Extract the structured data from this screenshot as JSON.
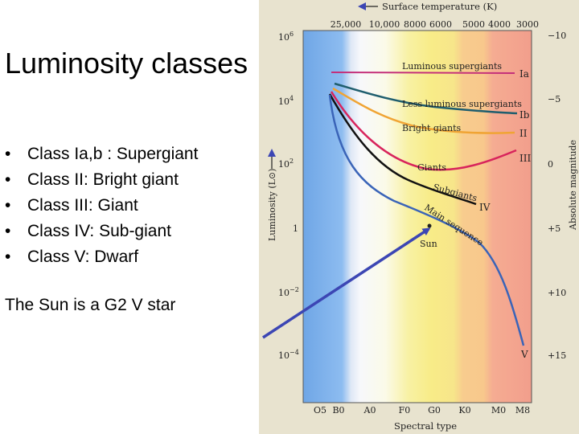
{
  "slide": {
    "title": "Luminosity classes",
    "bullets": [
      "Class Ia,b : Supergiant",
      "Class II: Bright giant",
      "Class III: Giant",
      "Class IV: Sub-giant",
      "Class V: Dwarf"
    ],
    "note": "The Sun is a G2 V star"
  },
  "diagram": {
    "top_axis_title": "Surface temperature (K)",
    "top_ticks": [
      "25,000",
      "10,000",
      "8000",
      "6000",
      "5000",
      "4000",
      "3000"
    ],
    "bottom_axis_title": "Spectral type",
    "bottom_ticks": [
      "O5",
      "B0",
      "A0",
      "F0",
      "G0",
      "K0",
      "M0",
      "M8"
    ],
    "left_axis_title": "Luminosity (L⊙)",
    "right_axis_title": "Absolute magnitude",
    "left_ticks": [
      {
        "base": "10",
        "exp": "6"
      },
      {
        "base": "10",
        "exp": "4"
      },
      {
        "base": "10",
        "exp": "2"
      },
      {
        "base": "1",
        "exp": ""
      },
      {
        "base": "10",
        "exp": "−2"
      },
      {
        "base": "10",
        "exp": "−4"
      }
    ],
    "right_ticks": [
      "−10",
      "−5",
      "0",
      "+5",
      "+10",
      "+15"
    ],
    "curve_labels": [
      "Luminous supergiants",
      "Less luminous supergiants",
      "Bright giants",
      "Giants",
      "Subgiants",
      "Main sequence",
      "Sun"
    ],
    "class_labels": [
      "Ia",
      "Ib",
      "II",
      "III",
      "IV",
      "V"
    ],
    "colors": {
      "blue_band": "#7aaee8",
      "white_band": "#f4f6fa",
      "yellow_band": "#f8ee8c",
      "orange_band": "#f8c890",
      "red_band": "#f4a58e",
      "luminous_supergiants": "#c4307a",
      "less_luminous_supergiants": "#1f5e6e",
      "bright_giants": "#f0a434",
      "giants": "#d8245c",
      "subgiants": "#111111",
      "main_sequence": "#3a64b8",
      "pointer_arrow": "#3c46b4"
    }
  }
}
